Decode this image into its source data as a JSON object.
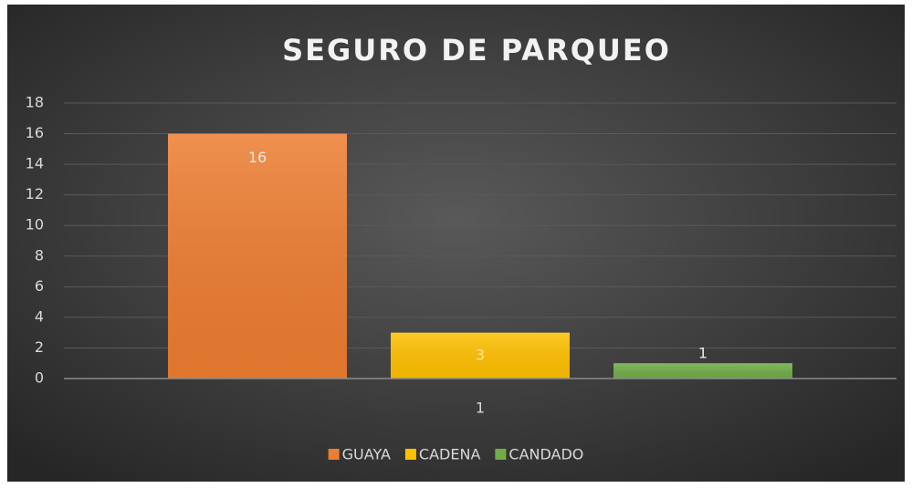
{
  "chart_data": {
    "type": "bar",
    "title": "SEGURO DE PARQUEO",
    "categories": [
      "1"
    ],
    "series": [
      {
        "name": "GUAYA",
        "color": "#ed7d31",
        "values": [
          16
        ]
      },
      {
        "name": "CADENA",
        "color": "#ffc000",
        "values": [
          3
        ]
      },
      {
        "name": "CANDADO",
        "color": "#70ad47",
        "values": [
          1
        ]
      }
    ],
    "ylim": [
      0,
      18
    ],
    "yticks": [
      0,
      2,
      4,
      6,
      8,
      10,
      12,
      14,
      16,
      18
    ],
    "grid": true,
    "legend": "bottom"
  }
}
